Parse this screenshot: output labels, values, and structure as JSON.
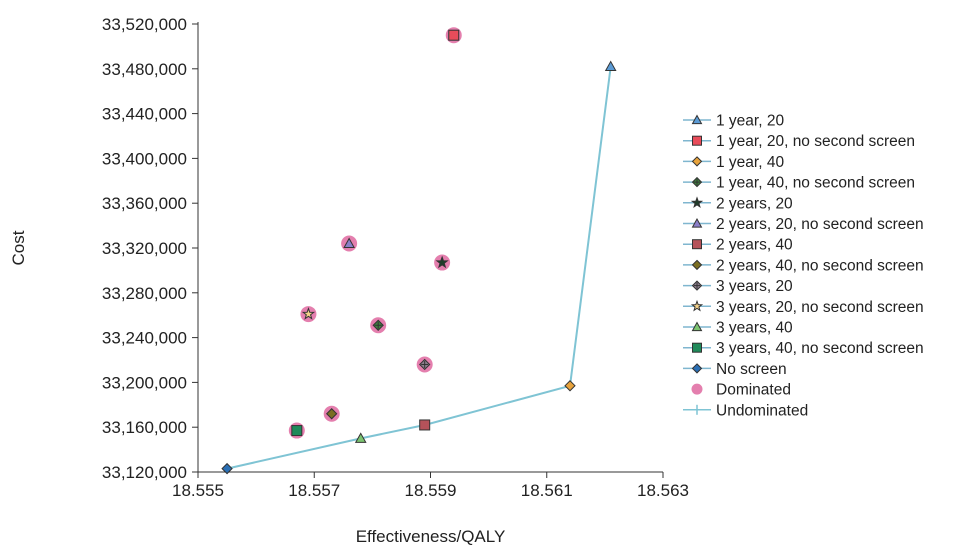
{
  "chart_data": {
    "type": "scatter",
    "title": "",
    "xlabel": "Effectiveness/QALY",
    "ylabel": "Cost",
    "xlim": [
      18.555,
      18.563
    ],
    "ylim": [
      33120000,
      33520000
    ],
    "x_ticks": [
      "18.555",
      "18.557",
      "18.559",
      "18.561",
      "18.563"
    ],
    "x_tick_values": [
      18.555,
      18.557,
      18.559,
      18.561,
      18.563
    ],
    "y_ticks": [
      "33,120,000",
      "33,160,000",
      "33,200,000",
      "33,240,000",
      "33,280,000",
      "33,320,000",
      "33,360,000",
      "33,400,000",
      "33,440,000",
      "33,480,000",
      "33,520,000"
    ],
    "y_tick_values": [
      33120000,
      33160000,
      33200000,
      33240000,
      33280000,
      33320000,
      33360000,
      33400000,
      33440000,
      33480000,
      33520000
    ],
    "grid": false,
    "legend_position": "right",
    "series": [
      {
        "name": "1 year, 20",
        "marker": "triangle",
        "color": "#5b9bd5",
        "x": 18.5621,
        "y": 33482000,
        "dominated": false
      },
      {
        "name": "1 year, 20, no second screen",
        "marker": "square",
        "color": "#e84c5a",
        "x": 18.5594,
        "y": 33510000,
        "dominated": true
      },
      {
        "name": "1 year, 40",
        "marker": "diamond",
        "color": "#e8a33c",
        "x": 18.5614,
        "y": 33197000,
        "dominated": false
      },
      {
        "name": "1 year, 40, no second screen",
        "marker": "diamond-cross",
        "color": "#3e7f3e",
        "x": 18.5581,
        "y": 33251000,
        "dominated": true
      },
      {
        "name": "2 years, 20",
        "marker": "star",
        "color": "#1f3d2a",
        "x": 18.5592,
        "y": 33307000,
        "dominated": true
      },
      {
        "name": "2 years, 20, no second screen",
        "marker": "triangle",
        "color": "#8b7fc9",
        "x": 18.5576,
        "y": 33324000,
        "dominated": true
      },
      {
        "name": "2 years, 40",
        "marker": "square",
        "color": "#b5525a",
        "x": 18.5589,
        "y": 33162000,
        "dominated": false
      },
      {
        "name": "2 years, 40, no second screen",
        "marker": "diamond",
        "color": "#7a6e22",
        "x": 18.5573,
        "y": 33172000,
        "dominated": true
      },
      {
        "name": "3 years, 20",
        "marker": "diamond-cross",
        "color": "#8e7f8f",
        "x": 18.5589,
        "y": 33216000,
        "dominated": true
      },
      {
        "name": "3 years, 20, no second screen",
        "marker": "star",
        "color": "#f4d28a",
        "x": 18.5569,
        "y": 33261000,
        "dominated": true
      },
      {
        "name": "3 years, 40",
        "marker": "triangle",
        "color": "#7cc470",
        "x": 18.5578,
        "y": 33150000,
        "dominated": false
      },
      {
        "name": "3 years, 40, no second screen",
        "marker": "square",
        "color": "#1f8a5a",
        "x": 18.5567,
        "y": 33157000,
        "dominated": true
      },
      {
        "name": "No screen",
        "marker": "diamond",
        "color": "#2a6fb5",
        "x": 18.5555,
        "y": 33123000,
        "dominated": false
      }
    ],
    "dominated_legend": {
      "name": "Dominated",
      "color": "#e47fae"
    },
    "undominated_legend": {
      "name": "Undominated",
      "color": "#7fc4d4"
    },
    "frontier": [
      {
        "x": 18.5555,
        "y": 33123000
      },
      {
        "x": 18.5578,
        "y": 33150000
      },
      {
        "x": 18.5589,
        "y": 33162000
      },
      {
        "x": 18.5614,
        "y": 33197000
      },
      {
        "x": 18.5621,
        "y": 33482000
      }
    ]
  }
}
